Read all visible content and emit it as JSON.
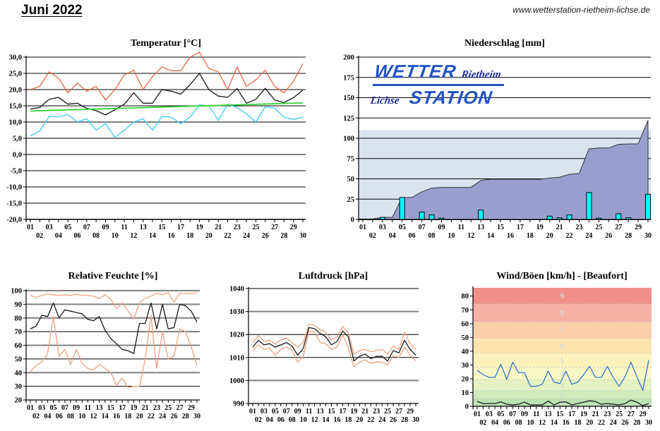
{
  "page": {
    "title": "Juni 2022",
    "website": "www.wetterstation-rietheim-lichse.de"
  },
  "logo": {
    "wetter": "WETTER",
    "rietheim": "Rietheim",
    "lichse": "Lichse",
    "station": "STATION"
  },
  "colors": {
    "grid_thick": "#808080",
    "grid_thin": "#000000",
    "temp_max": "#e06a45",
    "temp_mean": "#1a1a1a",
    "temp_min": "#3cc8f4",
    "temp_trend": "#35d435",
    "precip_area": "#9a9ecf",
    "precip_band": "#dbe3f1",
    "precip_bar": "#00ffff",
    "salmon_envelope": "#f0a183",
    "wind_gust_blue": "#3478c8",
    "logo_blue": "#2353c5",
    "logo_navy": "#1f2a99"
  },
  "x_labels": [
    "01",
    "02",
    "03",
    "04",
    "05",
    "06",
    "07",
    "08",
    "09",
    "10",
    "11",
    "12",
    "13",
    "14",
    "15",
    "16",
    "17",
    "18",
    "19",
    "20",
    "21",
    "22",
    "23",
    "24",
    "25",
    "26",
    "27",
    "28",
    "29",
    "30"
  ],
  "chart_data": [
    {
      "id": "temperature",
      "type": "line",
      "title": "Temperatur [°C]",
      "ylim": [
        -20,
        30
      ],
      "y_ticks": [
        {
          "label": "30,0",
          "value": 30,
          "style": "thick"
        },
        {
          "label": "25,0",
          "value": 25,
          "style": "thick"
        },
        {
          "label": "20,0",
          "value": 20,
          "style": "thick"
        },
        {
          "label": "15,0",
          "value": 15,
          "style": "thin"
        },
        {
          "label": "10,0",
          "value": 10,
          "style": "thick"
        },
        {
          "label": "5,0",
          "value": 5,
          "style": "thick"
        },
        {
          "label": "0,0",
          "value": 0,
          "style": "thick"
        },
        {
          "label": "-5,0",
          "value": -5,
          "style": "thin"
        },
        {
          "label": "-10,0",
          "value": -10,
          "style": "thick"
        },
        {
          "label": "-15,0",
          "value": -15,
          "style": "thick"
        },
        {
          "label": "-20,0",
          "value": -20,
          "style": "thick"
        }
      ],
      "series": [
        {
          "name": "max",
          "color": "#e06a45",
          "values": [
            20,
            21,
            25.5,
            23.5,
            19,
            22,
            19.5,
            21,
            16.8,
            20,
            24.5,
            26,
            20,
            24,
            27,
            25.8,
            25.8,
            30,
            31.5,
            26.5,
            25.5,
            20,
            27,
            21,
            23,
            26,
            21,
            19,
            22.5,
            28
          ]
        },
        {
          "name": "mean",
          "color": "#1a1a1a",
          "values": [
            14,
            14.5,
            17,
            17.6,
            15.5,
            15.8,
            14.2,
            13.5,
            12.2,
            13.8,
            15.5,
            19,
            15.8,
            15.8,
            20,
            19.5,
            18.6,
            21.5,
            25,
            20,
            18,
            17.6,
            20.3,
            15.8,
            17,
            20.4,
            16.8,
            16,
            17.5,
            19.8
          ]
        },
        {
          "name": "min",
          "color": "#3cc8f4",
          "values": [
            5.7,
            7.2,
            11.7,
            11.6,
            12.3,
            10,
            11,
            7.5,
            9.5,
            5.3,
            7.5,
            10,
            11,
            7.5,
            11.7,
            11.5,
            9.5,
            11.5,
            15.3,
            15,
            10.5,
            15.5,
            14.5,
            12.5,
            10,
            14.7,
            14.3,
            11.5,
            10.8,
            11.5
          ]
        },
        {
          "name": "trend",
          "color": "#35d435",
          "trend": [
            13.4,
            15.9
          ],
          "width": 1.8
        }
      ]
    },
    {
      "id": "precipitation",
      "type": "area+bar",
      "title": "Niederschlag [mm]",
      "ylim": [
        0,
        200
      ],
      "band_top": 110,
      "band_color": "#dbe3f1",
      "area_color": "#9a9ecf",
      "bar_color": "#00ffff",
      "y_ticks": [
        {
          "label": "200",
          "value": 200,
          "style": "thick"
        },
        {
          "label": "175",
          "value": 175,
          "style": "thin"
        },
        {
          "label": "150",
          "value": 150,
          "style": "thin"
        },
        {
          "label": "125",
          "value": 125,
          "style": "thin"
        },
        {
          "label": "100",
          "value": 100,
          "style": "thin"
        },
        {
          "label": "75",
          "value": 75,
          "style": "thin"
        },
        {
          "label": "50",
          "value": 50,
          "style": "thin"
        },
        {
          "label": "25",
          "value": 25,
          "style": "thin"
        },
        {
          "label": "0",
          "value": 0,
          "style": "axis"
        }
      ],
      "cumulative": [
        0,
        0.5,
        2.5,
        2.5,
        27,
        27,
        34,
        38.5,
        39.5,
        39.5,
        39.5,
        39.5,
        48,
        49.5,
        49.5,
        49.5,
        49.5,
        49.5,
        49.5,
        51,
        52,
        55.5,
        56.5,
        87,
        88,
        88,
        92.5,
        93,
        93,
        122
      ],
      "daily": [
        0,
        0,
        2.5,
        0,
        27,
        0,
        9,
        5.5,
        1.5,
        0,
        0,
        0,
        11.5,
        0,
        0,
        0,
        0,
        0,
        0,
        4,
        2,
        5.5,
        0,
        33,
        1.5,
        0,
        7,
        2,
        0,
        31
      ]
    },
    {
      "id": "humidity",
      "type": "line",
      "title": "Relative Feuchte [%]",
      "ylim": [
        20,
        100
      ],
      "y_ticks": [
        {
          "label": "100",
          "value": 100,
          "style": "thick"
        },
        {
          "label": "90",
          "value": 90,
          "style": "thick"
        },
        {
          "label": "80",
          "value": 80,
          "style": "thick"
        },
        {
          "label": "70",
          "value": 70,
          "style": "thin"
        },
        {
          "label": "60",
          "value": 60,
          "style": "thick"
        },
        {
          "label": "50",
          "value": 50,
          "style": "thin"
        },
        {
          "label": "40",
          "value": 40,
          "style": "thick"
        },
        {
          "label": "30",
          "value": 30,
          "style": "thin"
        },
        {
          "label": "20",
          "value": 20,
          "style": "axis"
        }
      ],
      "series": [
        {
          "name": "max",
          "color": "#f0a183",
          "values": [
            96.5,
            95,
            96.5,
            97.5,
            97,
            96.5,
            97,
            96.5,
            97.5,
            96.5,
            96.5,
            96,
            94,
            97,
            93.5,
            87,
            91,
            85,
            79.5,
            91,
            94.5,
            96,
            98,
            97,
            98.5,
            91.5,
            98,
            98,
            98,
            98.5
          ]
        },
        {
          "name": "mean",
          "color": "#1a1a1a",
          "values": [
            72,
            74,
            82,
            81,
            91,
            80,
            86,
            85,
            84,
            83,
            79,
            78,
            81,
            71,
            65,
            61,
            57,
            56,
            54,
            76,
            76,
            91,
            72,
            90,
            72,
            73,
            90,
            89,
            85,
            77
          ]
        },
        {
          "name": "min",
          "color": "#f0a183",
          "values": [
            41,
            45,
            48,
            54,
            81,
            52,
            57,
            46,
            57,
            47,
            43,
            42,
            46,
            43,
            40,
            31,
            36,
            29,
            30,
            30,
            50,
            82,
            43,
            70,
            50,
            52,
            72,
            70,
            59,
            45
          ]
        }
      ]
    },
    {
      "id": "pressure",
      "type": "line",
      "title": "Luftdruck [hPa]",
      "ylim": [
        990,
        1040
      ],
      "y_ticks": [
        {
          "label": "1040",
          "value": 1040,
          "style": "thick"
        },
        {
          "label": "1030",
          "value": 1030,
          "style": "thick"
        },
        {
          "label": "1020",
          "value": 1020,
          "style": "thin"
        },
        {
          "label": "1010",
          "value": 1010,
          "style": "thin"
        },
        {
          "label": "1000",
          "value": 1000,
          "style": "thick"
        },
        {
          "label": "990",
          "value": 990,
          "style": "axis"
        }
      ],
      "series": [
        {
          "name": "max",
          "color": "#f0a183",
          "values": [
            1016.5,
            1019.5,
            1017,
            1017.5,
            1016,
            1017.5,
            1018.5,
            1016.5,
            1014.5,
            1016.5,
            1024.5,
            1024,
            1022,
            1021,
            1017.5,
            1019,
            1023.5,
            1021,
            1011.5,
            1013,
            1013.5,
            1012.5,
            1013,
            1013.5,
            1011.5,
            1015,
            1013.5,
            1021,
            1016,
            1013.5
          ]
        },
        {
          "name": "mean",
          "color": "#1a1a1a",
          "values": [
            1014.5,
            1017.5,
            1015.5,
            1016,
            1014.5,
            1015.5,
            1016.5,
            1015,
            1011,
            1014,
            1023,
            1022.5,
            1020.5,
            1019,
            1015.5,
            1017,
            1021.5,
            1019,
            1008.5,
            1010.5,
            1011.5,
            1009.5,
            1010.5,
            1010.5,
            1008.5,
            1013,
            1012,
            1017.5,
            1013.5,
            1011
          ]
        },
        {
          "name": "min",
          "color": "#f0a183",
          "values": [
            1013,
            1015.5,
            1013.5,
            1014,
            1011,
            1013.5,
            1014.5,
            1013,
            1008,
            1010.5,
            1021.5,
            1021,
            1016.5,
            1016,
            1013.5,
            1014.5,
            1020,
            1014,
            1006,
            1008,
            1009,
            1007.5,
            1008,
            1008,
            1006.5,
            1011,
            1010,
            1014.5,
            1011,
            1008.5
          ]
        }
      ]
    },
    {
      "id": "wind",
      "type": "line+bands",
      "title": "Wind/Böen [km/h] - [Beaufort]",
      "ylim": [
        0,
        86
      ],
      "y_ticks": [
        {
          "label": "80",
          "value": 80,
          "style": "none"
        },
        {
          "label": "70",
          "value": 70,
          "style": "none"
        },
        {
          "label": "60",
          "value": 60,
          "style": "none"
        },
        {
          "label": "50",
          "value": 50,
          "style": "none"
        },
        {
          "label": "40",
          "value": 40,
          "style": "none"
        },
        {
          "label": "30",
          "value": 30,
          "style": "none"
        },
        {
          "label": "20",
          "value": 20,
          "style": "none"
        },
        {
          "label": "10",
          "value": 10,
          "style": "none"
        },
        {
          "label": "0",
          "value": 0,
          "style": "axis"
        }
      ],
      "bands": [
        {
          "label": "1",
          "from": 0,
          "to": 5.5,
          "color": "#bce2b4"
        },
        {
          "label": "2",
          "from": 5.5,
          "to": 11.5,
          "color": "#d0ebbe"
        },
        {
          "label": "3",
          "from": 11.5,
          "to": 19.5,
          "color": "#e6f2c2"
        },
        {
          "label": "4",
          "from": 19.5,
          "to": 28.5,
          "color": "#f8f8c6"
        },
        {
          "label": "5",
          "from": 28.5,
          "to": 38.5,
          "color": "#fdf2bc"
        },
        {
          "label": "6",
          "from": 38.5,
          "to": 49.5,
          "color": "#fce4ae"
        },
        {
          "label": "7",
          "from": 49.5,
          "to": 61.5,
          "color": "#facfaa"
        },
        {
          "label": "8",
          "from": 61.5,
          "to": 74.5,
          "color": "#f6b0a6"
        },
        {
          "label": "9",
          "from": 74.5,
          "to": 86,
          "color": "#f18f8a"
        }
      ],
      "series": [
        {
          "name": "gusts",
          "color": "#3478c8",
          "values": [
            26,
            23,
            21,
            21,
            30.5,
            19.5,
            32,
            24.5,
            24.5,
            14.5,
            14.5,
            16,
            25.5,
            17.5,
            16.5,
            25.5,
            16,
            17.5,
            23,
            29,
            21,
            21,
            29,
            21,
            14.5,
            21.5,
            32,
            21.5,
            11.5,
            33.5
          ]
        },
        {
          "name": "average",
          "color": "#1a1a1a",
          "values": [
            3.5,
            2,
            2,
            2,
            3.2,
            1.5,
            1,
            1.5,
            3,
            1,
            1,
            1,
            3.8,
            1,
            3,
            3.2,
            1,
            2,
            3,
            4,
            3.5,
            1.5,
            2,
            1.5,
            1,
            2,
            4.5,
            3,
            0.5,
            2
          ]
        }
      ]
    }
  ]
}
